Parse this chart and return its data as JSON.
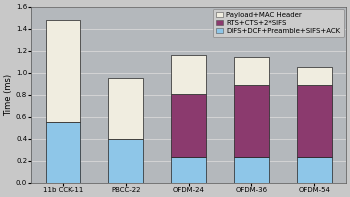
{
  "categories": [
    "11b CCK-11",
    "PBCC-22",
    "OFDM-24",
    "OFDM-36",
    "OFDM-54"
  ],
  "difs_values": [
    0.55,
    0.4,
    0.23,
    0.23,
    0.23
  ],
  "rts_values": [
    0.0,
    0.0,
    0.58,
    0.66,
    0.66
  ],
  "payload_values": [
    0.93,
    0.55,
    0.35,
    0.25,
    0.16
  ],
  "color_difs": "#8ec6e8",
  "color_rts": "#8b3a6e",
  "color_payload": "#f0ede0",
  "legend_labels": [
    "Payload+MAC Header",
    "RTS+CTS+2*SIFS",
    "DIFS+DCF+Preamble+SIFS+ACK"
  ],
  "ylabel": "Time (ms)",
  "ylim": [
    0.0,
    1.6
  ],
  "yticks": [
    0.0,
    0.2,
    0.4,
    0.6,
    0.8,
    1.0,
    1.2,
    1.4,
    1.6
  ],
  "background_color": "#c8c8c8",
  "plot_bg_color": "#b4b8bc",
  "bar_edge_color": "#222222",
  "grid_color": "#d8d8d8",
  "label_fontsize": 6,
  "tick_fontsize": 5,
  "legend_fontsize": 5,
  "bar_width": 0.55
}
